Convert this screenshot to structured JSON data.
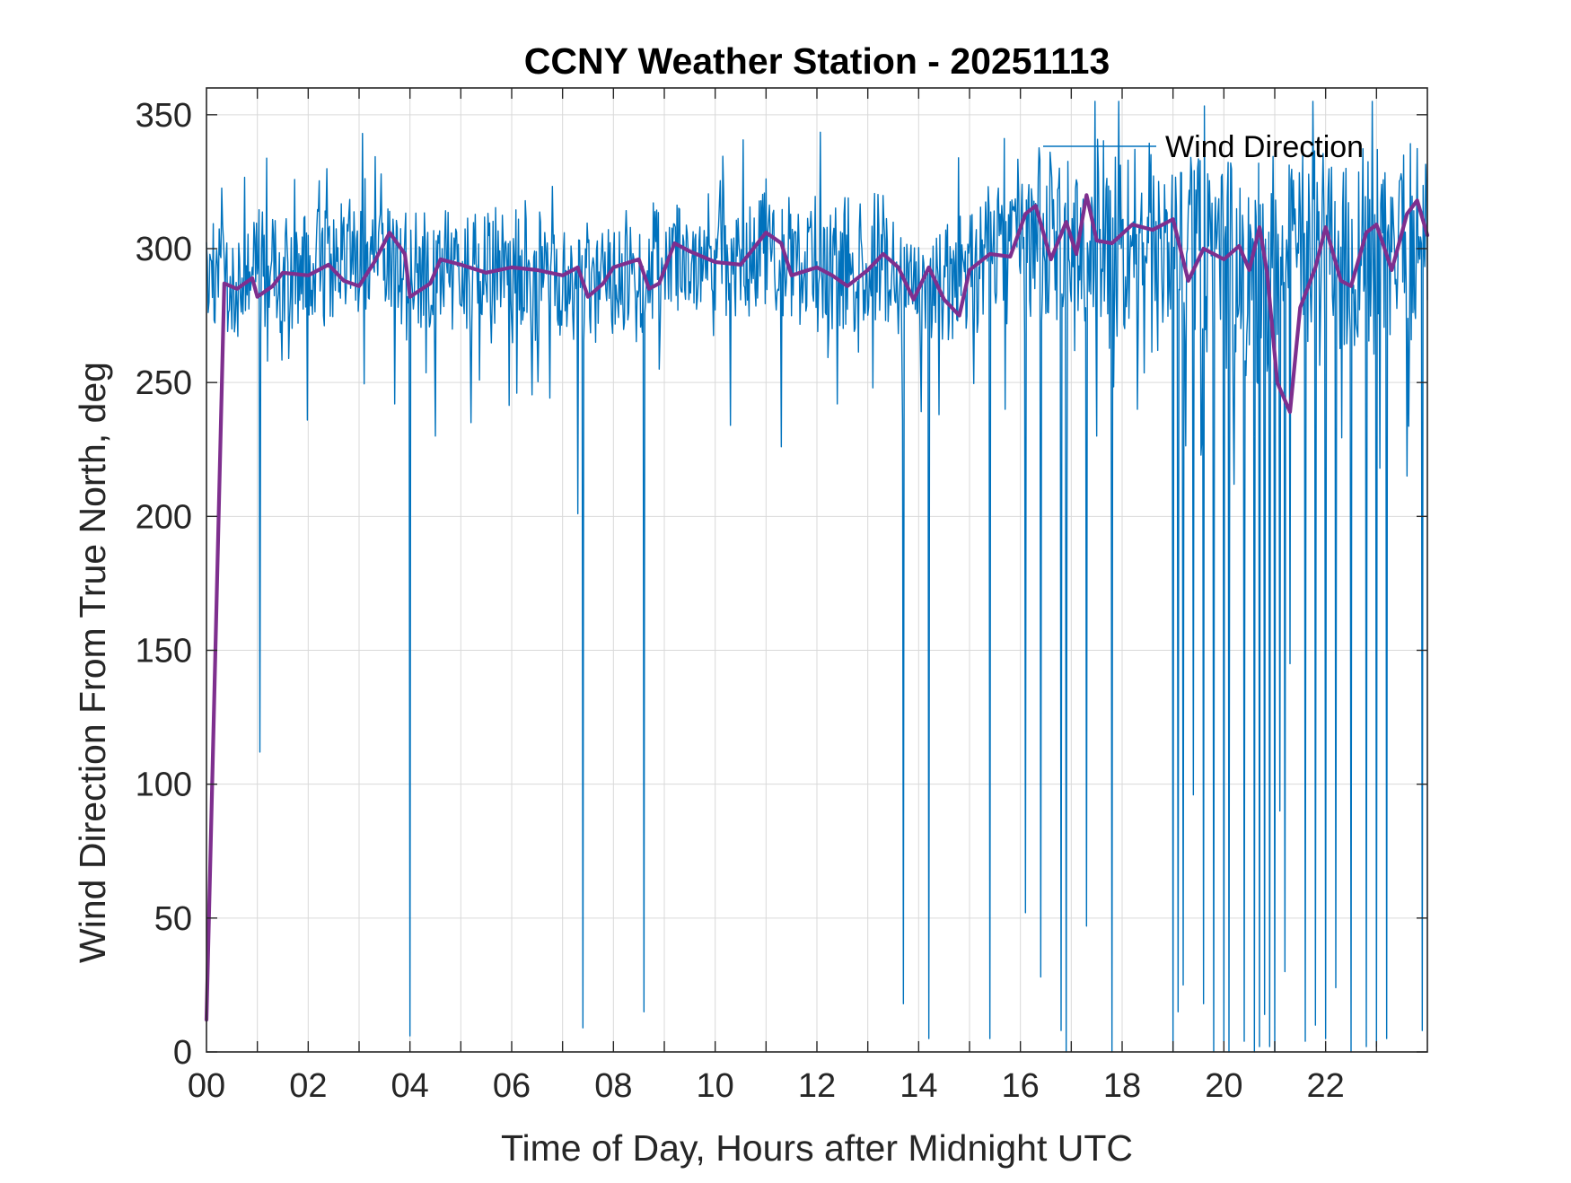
{
  "chart_data": {
    "type": "line",
    "title": "CCNY Weather Station - 20251113",
    "xlabel": "Time of Day, Hours after Midnight UTC",
    "ylabel": "Wind Direction From True North, deg",
    "xlim": [
      0,
      24
    ],
    "ylim": [
      0,
      360
    ],
    "x_ticks": [
      0,
      2,
      4,
      6,
      8,
      10,
      12,
      14,
      16,
      18,
      20,
      22
    ],
    "x_tick_labels": [
      "00",
      "02",
      "04",
      "06",
      "08",
      "10",
      "12",
      "14",
      "16",
      "18",
      "20",
      "22"
    ],
    "y_ticks": [
      0,
      50,
      100,
      150,
      200,
      250,
      300,
      350
    ],
    "y_tick_labels": [
      "0",
      "50",
      "100",
      "150",
      "200",
      "250",
      "300",
      "350"
    ],
    "grid": true,
    "legend": {
      "location": "top-right",
      "entries": [
        "Wind Direction"
      ]
    },
    "series": [
      {
        "name": "Wind Direction",
        "color": "#0072BD",
        "style": "raw",
        "baseline": [
          [
            0,
            292
          ],
          [
            2,
            292
          ],
          [
            3.5,
            298
          ],
          [
            4,
            292
          ],
          [
            6,
            291
          ],
          [
            8,
            289
          ],
          [
            9.3,
            297
          ],
          [
            11,
            299
          ],
          [
            12,
            294
          ],
          [
            13.5,
            294
          ],
          [
            14.5,
            285
          ],
          [
            15.5,
            298
          ],
          [
            16.5,
            303
          ],
          [
            17.5,
            304
          ],
          [
            19,
            302
          ],
          [
            20,
            297
          ],
          [
            20.9,
            288
          ],
          [
            21.5,
            299
          ],
          [
            23,
            302
          ],
          [
            24,
            308
          ]
        ],
        "noise": [
          [
            0,
            13
          ],
          [
            15.5,
            14
          ],
          [
            16,
            20
          ],
          [
            24,
            22
          ]
        ],
        "spikes": [
          [
            0.05,
            280
          ],
          [
            0.5,
            270
          ],
          [
            1.05,
            112
          ],
          [
            1.2,
            258
          ],
          [
            3.7,
            242
          ],
          [
            4,
            6
          ],
          [
            4.5,
            230
          ],
          [
            5.2,
            235
          ],
          [
            6.1,
            246
          ],
          [
            7.3,
            201
          ],
          [
            7.4,
            9
          ],
          [
            8.6,
            15
          ],
          [
            8.9,
            255
          ],
          [
            10.3,
            234
          ],
          [
            11.3,
            226
          ],
          [
            12.4,
            242
          ],
          [
            13.1,
            248
          ],
          [
            13.7,
            18
          ],
          [
            14.2,
            5
          ],
          [
            14.4,
            238
          ],
          [
            15.4,
            5
          ],
          [
            15.7,
            240
          ],
          [
            16.1,
            52
          ],
          [
            16.4,
            28
          ],
          [
            16.8,
            8
          ],
          [
            16.9,
            0
          ],
          [
            17.3,
            47
          ],
          [
            17.5,
            230
          ],
          [
            17.8,
            0
          ],
          [
            18.3,
            240
          ],
          [
            18.7,
            262
          ],
          [
            19,
            0
          ],
          [
            19.1,
            15
          ],
          [
            19.2,
            25
          ],
          [
            19.4,
            96
          ],
          [
            19.6,
            18
          ],
          [
            19.8,
            0
          ],
          [
            20,
            4
          ],
          [
            20.1,
            0
          ],
          [
            20.2,
            212
          ],
          [
            20.4,
            4
          ],
          [
            20.6,
            0
          ],
          [
            20.7,
            2
          ],
          [
            20.8,
            14
          ],
          [
            20.9,
            2
          ],
          [
            21.0,
            0
          ],
          [
            21.1,
            90
          ],
          [
            21.2,
            30
          ],
          [
            21.3,
            145
          ],
          [
            21.6,
            4
          ],
          [
            21.8,
            10
          ],
          [
            22.0,
            5
          ],
          [
            22.2,
            24
          ],
          [
            22.5,
            0
          ],
          [
            22.8,
            2
          ],
          [
            23.0,
            2
          ],
          [
            23.2,
            5
          ],
          [
            23.9,
            8
          ]
        ],
        "seed": 20251113
      },
      {
        "name": "",
        "color": "#7E2F8E",
        "style": "smoothed",
        "points": [
          [
            0,
            12
          ],
          [
            0.35,
            287
          ],
          [
            0.6,
            285
          ],
          [
            0.9,
            289
          ],
          [
            1.0,
            282
          ],
          [
            1.3,
            286
          ],
          [
            1.5,
            291
          ],
          [
            2,
            290
          ],
          [
            2.4,
            294
          ],
          [
            2.7,
            288
          ],
          [
            3,
            286
          ],
          [
            3.3,
            295
          ],
          [
            3.6,
            306
          ],
          [
            3.9,
            298
          ],
          [
            4.0,
            282
          ],
          [
            4.4,
            287
          ],
          [
            4.6,
            296
          ],
          [
            5,
            294
          ],
          [
            5.5,
            291
          ],
          [
            6,
            293
          ],
          [
            6.5,
            292
          ],
          [
            7,
            290
          ],
          [
            7.3,
            293
          ],
          [
            7.5,
            282
          ],
          [
            7.8,
            287
          ],
          [
            8,
            293
          ],
          [
            8.5,
            296
          ],
          [
            8.7,
            285
          ],
          [
            8.9,
            287
          ],
          [
            9.2,
            302
          ],
          [
            9.5,
            299
          ],
          [
            10,
            295
          ],
          [
            10.5,
            294
          ],
          [
            11,
            306
          ],
          [
            11.3,
            302
          ],
          [
            11.5,
            290
          ],
          [
            12,
            293
          ],
          [
            12.3,
            290
          ],
          [
            12.6,
            286
          ],
          [
            13,
            292
          ],
          [
            13.3,
            298
          ],
          [
            13.6,
            293
          ],
          [
            13.9,
            281
          ],
          [
            14.2,
            293
          ],
          [
            14.5,
            281
          ],
          [
            14.8,
            275
          ],
          [
            15,
            292
          ],
          [
            15.4,
            298
          ],
          [
            15.8,
            297
          ],
          [
            16.1,
            313
          ],
          [
            16.3,
            316
          ],
          [
            16.6,
            296
          ],
          [
            16.9,
            310
          ],
          [
            17.1,
            298
          ],
          [
            17.3,
            320
          ],
          [
            17.5,
            303
          ],
          [
            17.8,
            302
          ],
          [
            18.2,
            309
          ],
          [
            18.6,
            307
          ],
          [
            19,
            311
          ],
          [
            19.3,
            288
          ],
          [
            19.6,
            300
          ],
          [
            20,
            296
          ],
          [
            20.3,
            301
          ],
          [
            20.5,
            292
          ],
          [
            20.7,
            308
          ],
          [
            20.85,
            291
          ],
          [
            21.05,
            250
          ],
          [
            21.3,
            239
          ],
          [
            21.5,
            278
          ],
          [
            21.8,
            293
          ],
          [
            22,
            308
          ],
          [
            22.3,
            288
          ],
          [
            22.5,
            286
          ],
          [
            22.8,
            306
          ],
          [
            23,
            309
          ],
          [
            23.3,
            292
          ],
          [
            23.6,
            313
          ],
          [
            23.8,
            318
          ],
          [
            24,
            305
          ]
        ]
      }
    ]
  }
}
